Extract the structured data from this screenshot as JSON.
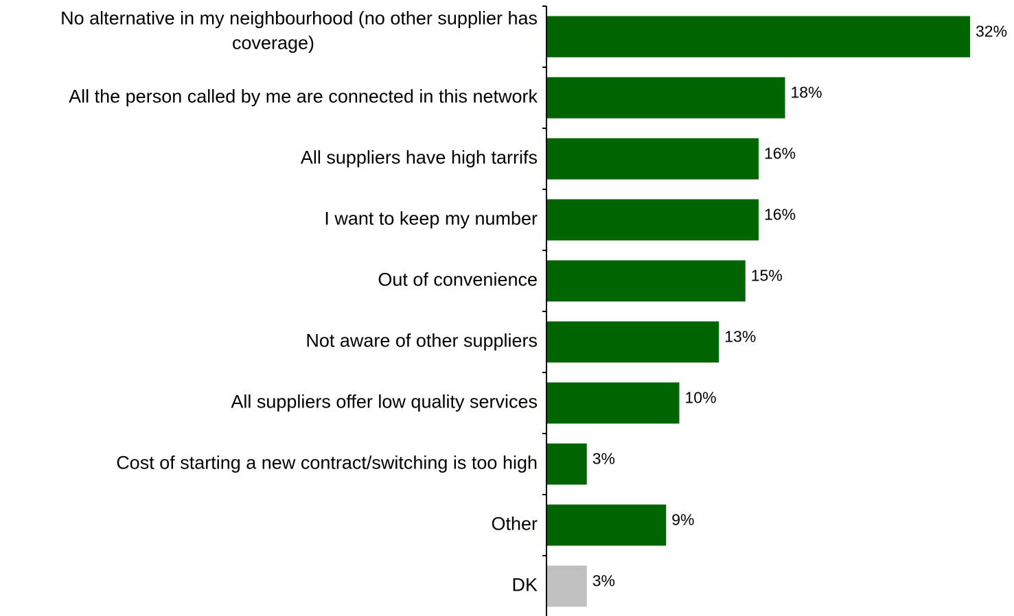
{
  "chart_data": {
    "type": "bar",
    "orientation": "horizontal",
    "categories": [
      [
        "No alternative in my neighbourhood (no other supplier has",
        "coverage)"
      ],
      [
        "All the person called by me are connected in this network"
      ],
      [
        "All suppliers have high tarrifs"
      ],
      [
        "I want to keep my number"
      ],
      [
        "Out of convenience"
      ],
      [
        "Not aware of other suppliers"
      ],
      [
        "All suppliers offer low quality services"
      ],
      [
        "Cost of starting a new contract/switching is too high"
      ],
      [
        "Other"
      ],
      [
        "DK"
      ]
    ],
    "values": [
      32,
      18,
      16,
      16,
      15,
      13,
      10,
      3,
      9,
      3
    ],
    "value_labels": [
      "32%",
      "18%",
      "16%",
      "16%",
      "15%",
      "13%",
      "10%",
      "3%",
      "9%",
      "3%"
    ],
    "unit": "%",
    "xlim": [
      0,
      32
    ],
    "grid": false,
    "legend": "none",
    "colors": {
      "default_bar": "#006400",
      "dk_bar": "#c0c0c0",
      "axis": "#000000"
    },
    "bar_colors": [
      "#006400",
      "#006400",
      "#006400",
      "#006400",
      "#006400",
      "#006400",
      "#006400",
      "#006400",
      "#006400",
      "#c0c0c0"
    ]
  }
}
